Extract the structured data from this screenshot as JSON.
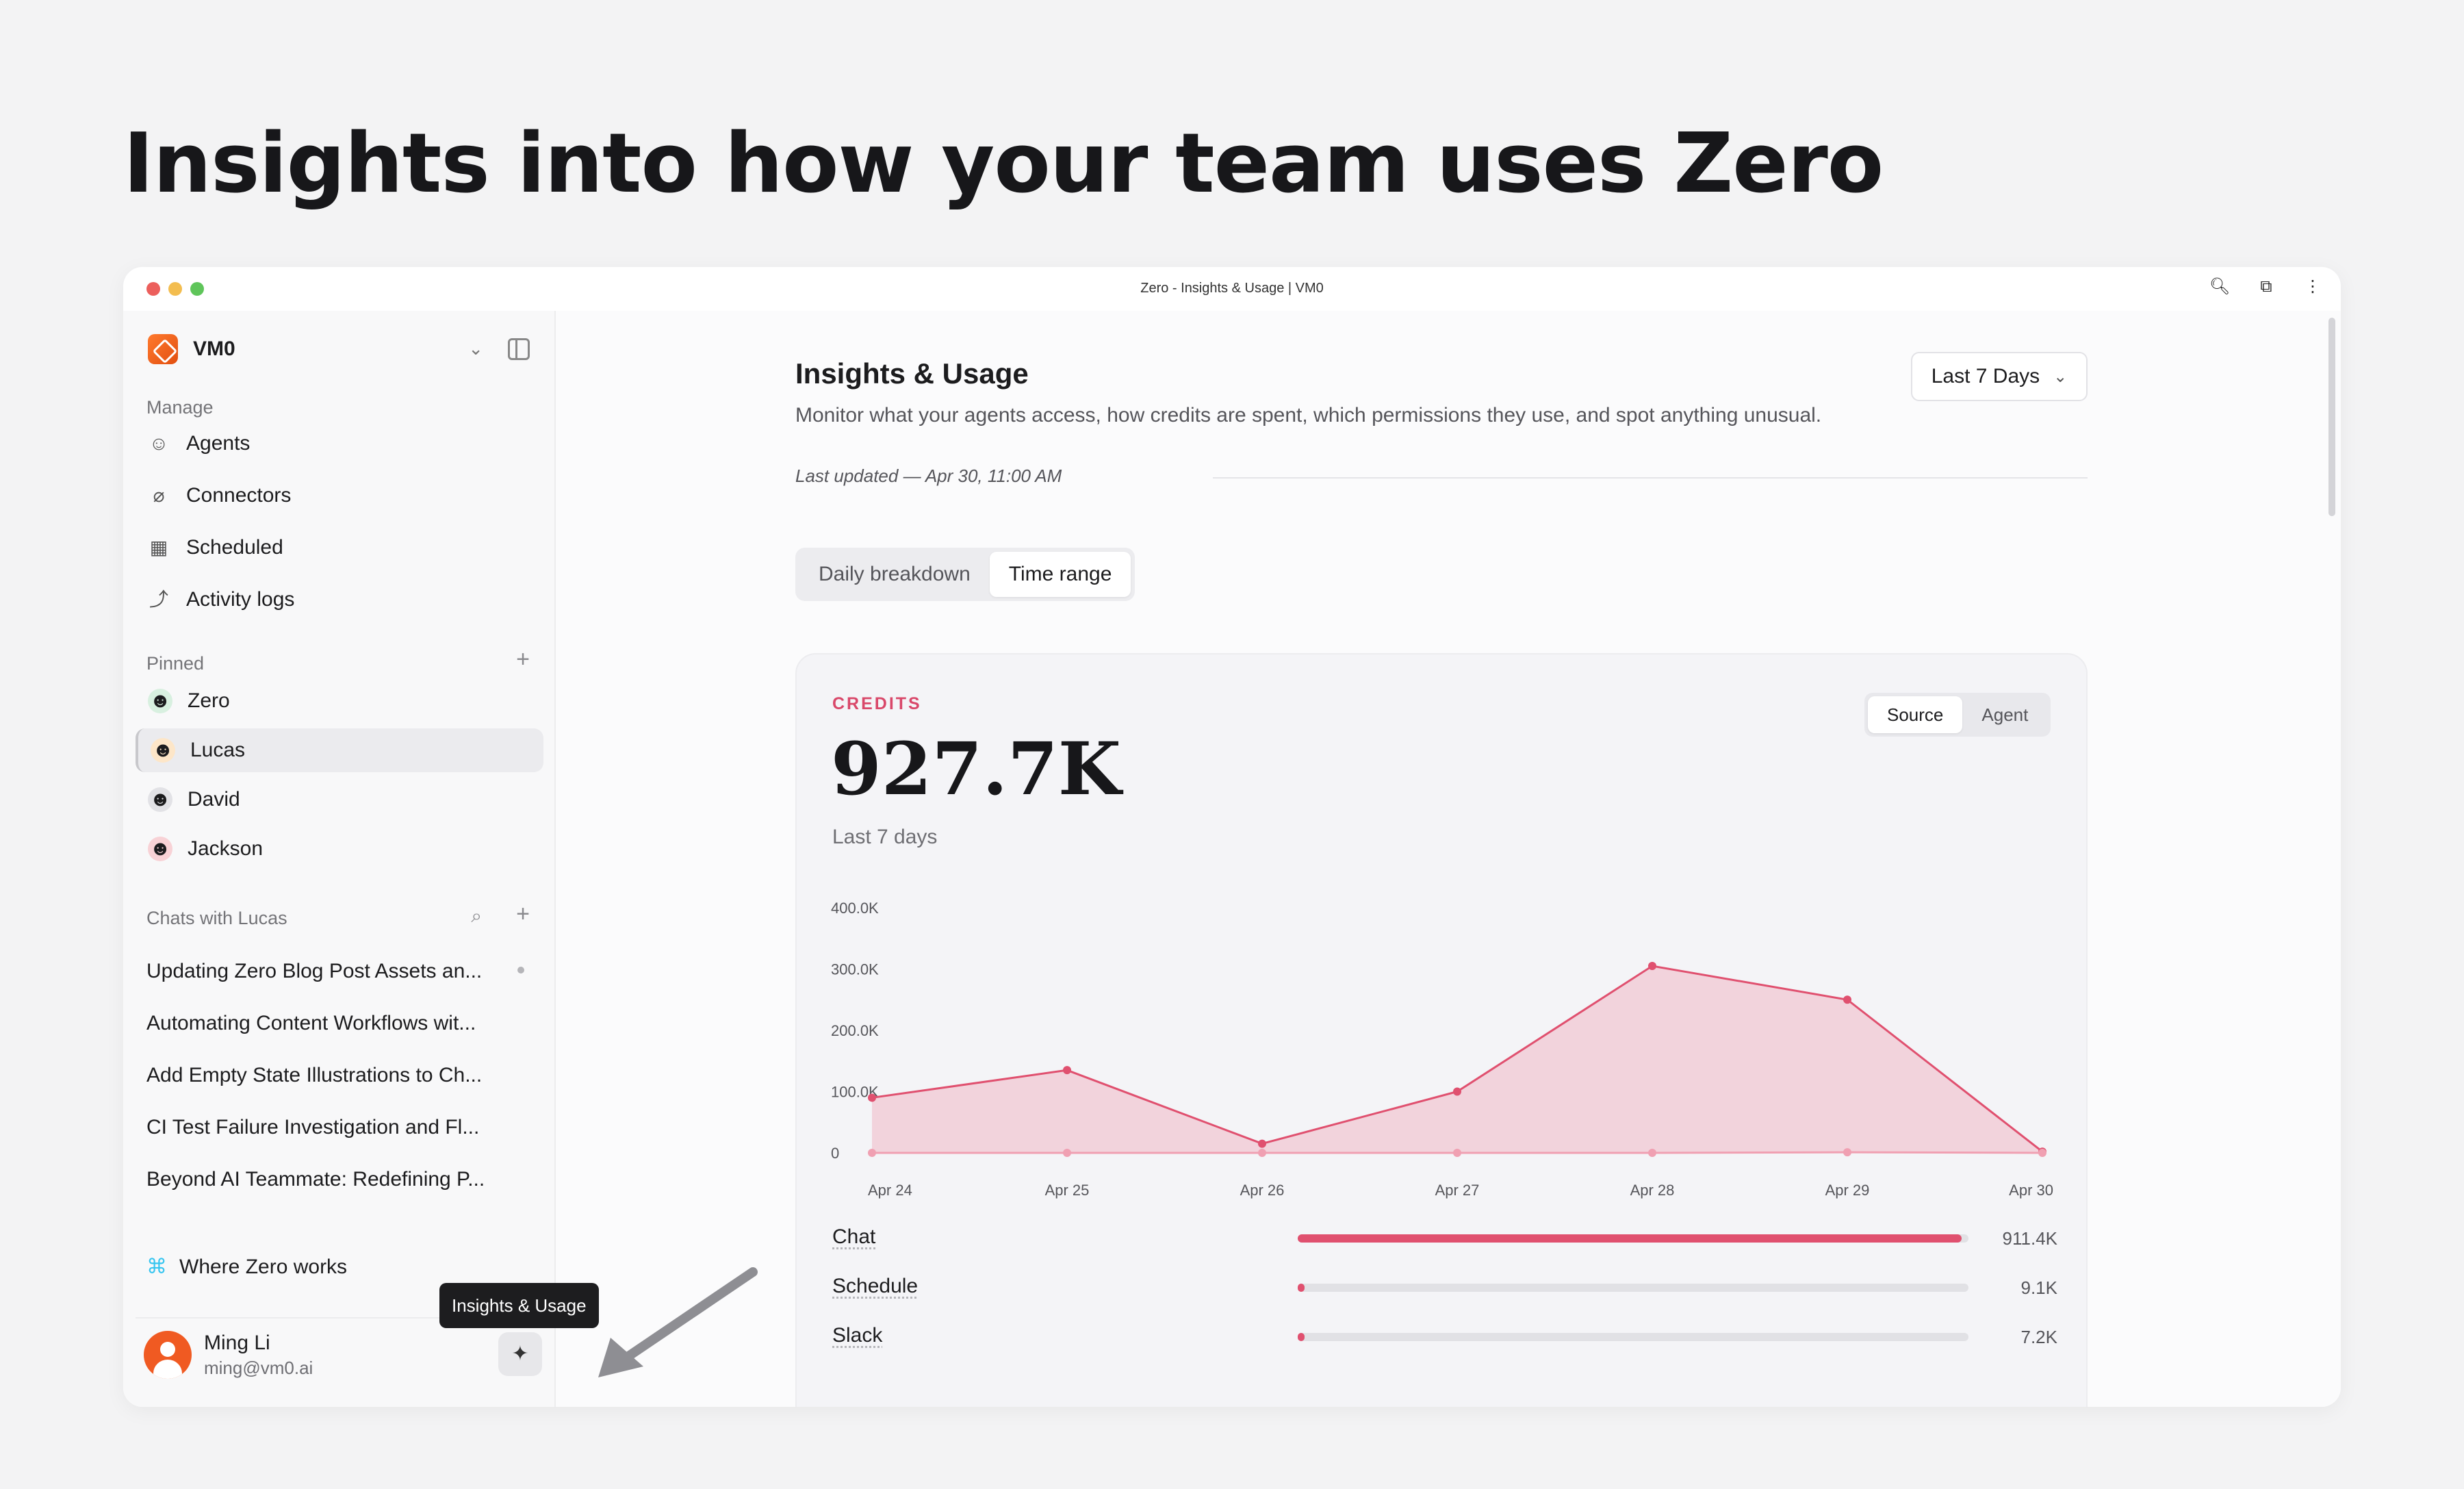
{
  "hero": {
    "title": "Insights into how your team uses Zero"
  },
  "window": {
    "title": "Zero - Insights & Usage | VM0"
  },
  "sidebar": {
    "workspace": "VM0",
    "manage_label": "Manage",
    "manage_items": [
      {
        "label": "Agents",
        "icon": "users-icon"
      },
      {
        "label": "Connectors",
        "icon": "plug-icon"
      },
      {
        "label": "Scheduled",
        "icon": "calendar-icon"
      },
      {
        "label": "Activity logs",
        "icon": "chart-line-icon"
      }
    ],
    "pinned_label": "Pinned",
    "pinned_items": [
      {
        "label": "Zero"
      },
      {
        "label": "Lucas"
      },
      {
        "label": "David"
      },
      {
        "label": "Jackson"
      }
    ],
    "chats_label": "Chats with Lucas",
    "chats": [
      "Updating Zero Blog Post Assets an...",
      "Automating Content Workflows wit...",
      "Add Empty State Illustrations to Ch...",
      "CI Test Failure Investigation and Fl...",
      "Beyond AI Teammate: Redefining P..."
    ],
    "where_label": "Where Zero works",
    "user": {
      "name": "Ming Li",
      "email": "ming@vm0.ai"
    }
  },
  "tooltip": "Insights & Usage",
  "main": {
    "title": "Insights & Usage",
    "subtitle": "Monitor what your agents access, how credits are spent, which permissions they use, and spot anything unusual.",
    "range_label": "Last 7 Days",
    "updated": "Last updated — Apr 30, 11:00 AM",
    "tabs": [
      "Daily breakdown",
      "Time range"
    ],
    "card": {
      "label": "CREDITS",
      "total": "927.7K",
      "period": "Last 7 days",
      "toggle": [
        "Source",
        "Agent"
      ]
    }
  },
  "chart_data": {
    "type": "area",
    "x": [
      "Apr 24",
      "Apr 25",
      "Apr 26",
      "Apr 27",
      "Apr 28",
      "Apr 29",
      "Apr 30"
    ],
    "y_ticks": [
      "400.0K",
      "300.0K",
      "200.0K",
      "100.0K",
      "0"
    ],
    "ylim": [
      0,
      400000
    ],
    "series": [
      {
        "values": [
          90000,
          135000,
          15000,
          100000,
          305000,
          250000,
          2000
        ],
        "color": "#e0506f"
      },
      {
        "values": [
          0,
          0,
          0,
          0,
          0,
          1000,
          0
        ],
        "color": "#f0a0b2"
      }
    ],
    "breakdown": [
      {
        "label": "Chat",
        "value": "911.4K",
        "amount": 911400
      },
      {
        "label": "Schedule",
        "value": "9.1K",
        "amount": 9100
      },
      {
        "label": "Slack",
        "value": "7.2K",
        "amount": 7200
      }
    ]
  }
}
